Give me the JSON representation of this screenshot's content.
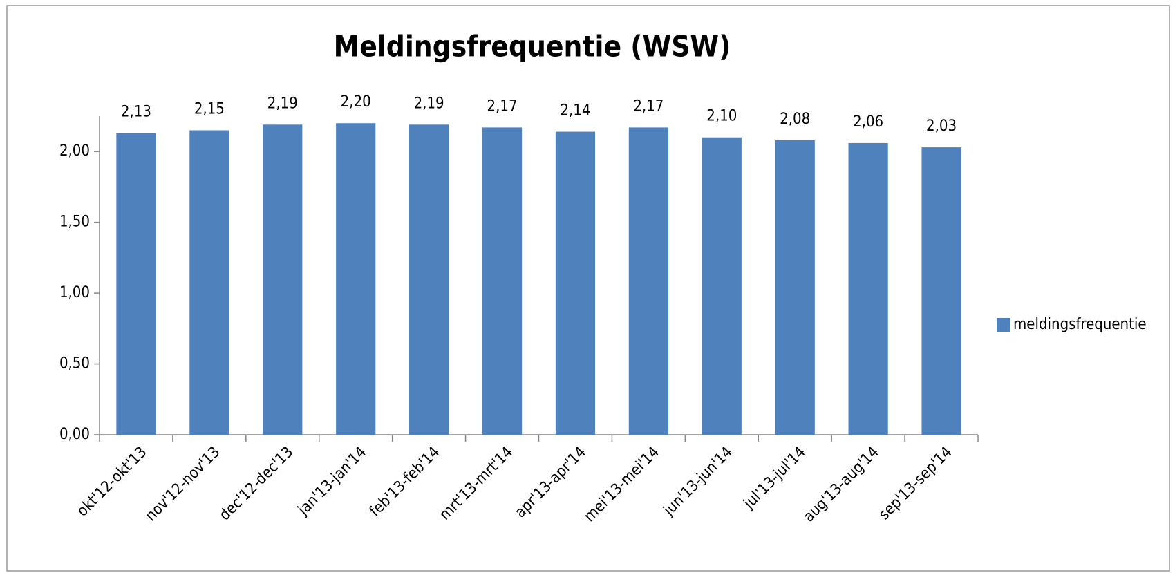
{
  "chart_data": {
    "type": "bar",
    "title": "Meldingsfrequentie (WSW)",
    "categories": [
      "okt'12-okt'13",
      "nov'12-nov'13",
      "dec'12-dec'13",
      "jan'13-jan'14",
      "feb'13-feb'14",
      "mrt'13-mrt'14",
      "apr'13-apr'14",
      "mei'13-mei'14",
      "jun'13-jun'14",
      "jul'13-jul'14",
      "aug'13-aug'14",
      "sep'13-sep'14"
    ],
    "series": [
      {
        "name": "meldingsfrequentie",
        "color": "#4f81bd",
        "values": [
          2.13,
          2.15,
          2.19,
          2.2,
          2.19,
          2.17,
          2.14,
          2.17,
          2.1,
          2.08,
          2.06,
          2.03
        ],
        "value_labels": [
          "2,13",
          "2,15",
          "2,19",
          "2,20",
          "2,19",
          "2,17",
          "2,14",
          "2,17",
          "2,10",
          "2,08",
          "2,06",
          "2,03"
        ]
      }
    ],
    "ylim": [
      0,
      2.25
    ],
    "yticks": [
      {
        "value": 0,
        "label": "0,00"
      },
      {
        "value": 0.5,
        "label": "0,50"
      },
      {
        "value": 1,
        "label": "1,00"
      },
      {
        "value": 1.5,
        "label": "1,50"
      },
      {
        "value": 2,
        "label": "2,00"
      }
    ],
    "legend": "right"
  }
}
